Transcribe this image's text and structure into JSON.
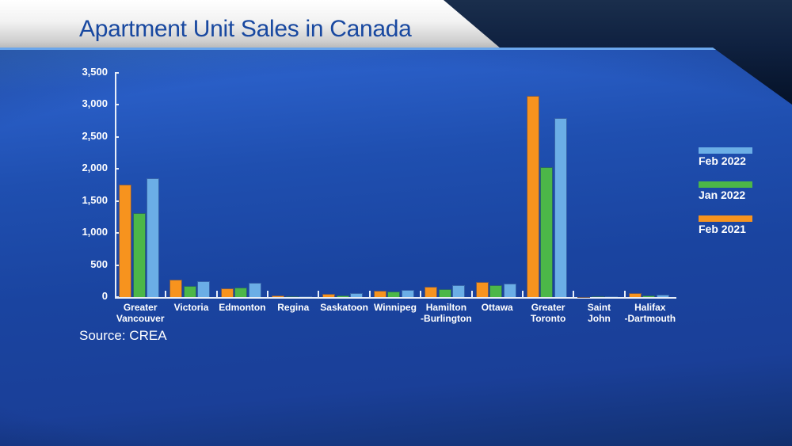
{
  "header": {
    "title": "Apartment Unit Sales in Canada"
  },
  "footer": {
    "source": "Source: CREA"
  },
  "colors": {
    "Feb 2021": "#F7931E",
    "Jan 2022": "#4CB748",
    "Feb 2022": "#6BAEE6",
    "panel_blue": "#1A44A0",
    "title_blue": "#1848A0"
  },
  "legend": [
    {
      "label": "Feb 2022",
      "color": "#6BAEE6"
    },
    {
      "label": "Jan 2022",
      "color": "#4CB748"
    },
    {
      "label": "Feb 2021",
      "color": "#F7931E"
    }
  ],
  "chart_data": {
    "type": "bar",
    "title": "Apartment Unit Sales in Canada",
    "xlabel": "",
    "ylabel": "",
    "ylim": [
      0,
      3500
    ],
    "yticks": [
      0,
      500,
      1000,
      1500,
      2000,
      2500,
      3000,
      3500
    ],
    "ytick_labels": [
      "0",
      "500",
      "1,000",
      "1,500",
      "2,000",
      "2,500",
      "3,000",
      "3,500"
    ],
    "grid": false,
    "legend_position": "right",
    "categories": [
      "Greater\nVancouver",
      "Victoria",
      "Edmonton",
      "Regina",
      "Saskatoon",
      "Winnipeg",
      "Hamilton\n-Burlington",
      "Ottawa",
      "Greater\nToronto",
      "Saint\nJohn",
      "Halifax\n-Dartmouth"
    ],
    "series": [
      {
        "name": "Feb 2021",
        "color": "#F7931E",
        "values": [
          1757,
          272,
          136,
          20,
          50,
          95,
          165,
          240,
          3143,
          0,
          65
        ]
      },
      {
        "name": "Jan 2022",
        "color": "#4CB748",
        "values": [
          1312,
          173,
          148,
          8,
          30,
          85,
          128,
          180,
          2030,
          5,
          30
        ]
      },
      {
        "name": "Feb 2022",
        "color": "#6BAEE6",
        "values": [
          1856,
          248,
          223,
          18,
          60,
          115,
          180,
          205,
          2793,
          3,
          35
        ]
      }
    ],
    "annotations": [
      "Source: CREA"
    ]
  }
}
